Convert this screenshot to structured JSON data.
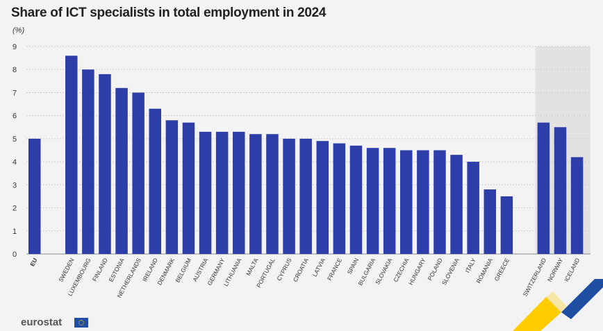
{
  "title": "Share of ICT specialists in total employment in 2024",
  "unit": "(%)",
  "logo": {
    "text": "eurostat",
    "flag_icon": "eu-flag-icon"
  },
  "colors": {
    "bar": "#2e3ea8",
    "grid": "#cccccc",
    "highlight_bg": "#e2e2e2",
    "accent_blue": "#1f4ea3",
    "accent_yellow": "#ffcc00"
  },
  "chart_data": {
    "type": "bar",
    "title": "Share of ICT specialists in total employment in 2024",
    "ylabel": "(%)",
    "xlabel": "",
    "ylim": [
      0,
      9
    ],
    "yticks": [
      0,
      1,
      2,
      3,
      4,
      5,
      6,
      7,
      8,
      9
    ],
    "grid": true,
    "groups": [
      {
        "categories": [
          "EU"
        ],
        "values": [
          5.0
        ]
      },
      {
        "categories": [
          "SWEDEN",
          "LUXEMBOURG",
          "FINLAND",
          "ESTONIA",
          "NETHERLANDS",
          "IRELAND",
          "DENMARK",
          "BELGIUM",
          "AUSTRIA",
          "GERMANY",
          "LITHUANIA",
          "MALTA",
          "PORTUGAL",
          "CYPRUS",
          "CROATIA",
          "LATVIA",
          "FRANCE",
          "SPAIN",
          "BULGARIA",
          "SLOVAKIA",
          "CZECHIA",
          "HUNGARY",
          "POLAND",
          "SLOVENIA",
          "ITALY",
          "ROMANIA",
          "GREECE"
        ],
        "values": [
          8.6,
          8.0,
          7.8,
          7.2,
          7.0,
          6.3,
          5.8,
          5.7,
          5.3,
          5.3,
          5.3,
          5.2,
          5.2,
          5.0,
          5.0,
          4.9,
          4.8,
          4.7,
          4.6,
          4.6,
          4.5,
          4.5,
          4.5,
          4.3,
          4.0,
          2.8,
          2.5
        ]
      },
      {
        "categories": [
          "SWITZERLAND",
          "NORWAY",
          "ICELAND"
        ],
        "values": [
          5.7,
          5.5,
          4.2
        ],
        "shaded": true
      }
    ]
  }
}
